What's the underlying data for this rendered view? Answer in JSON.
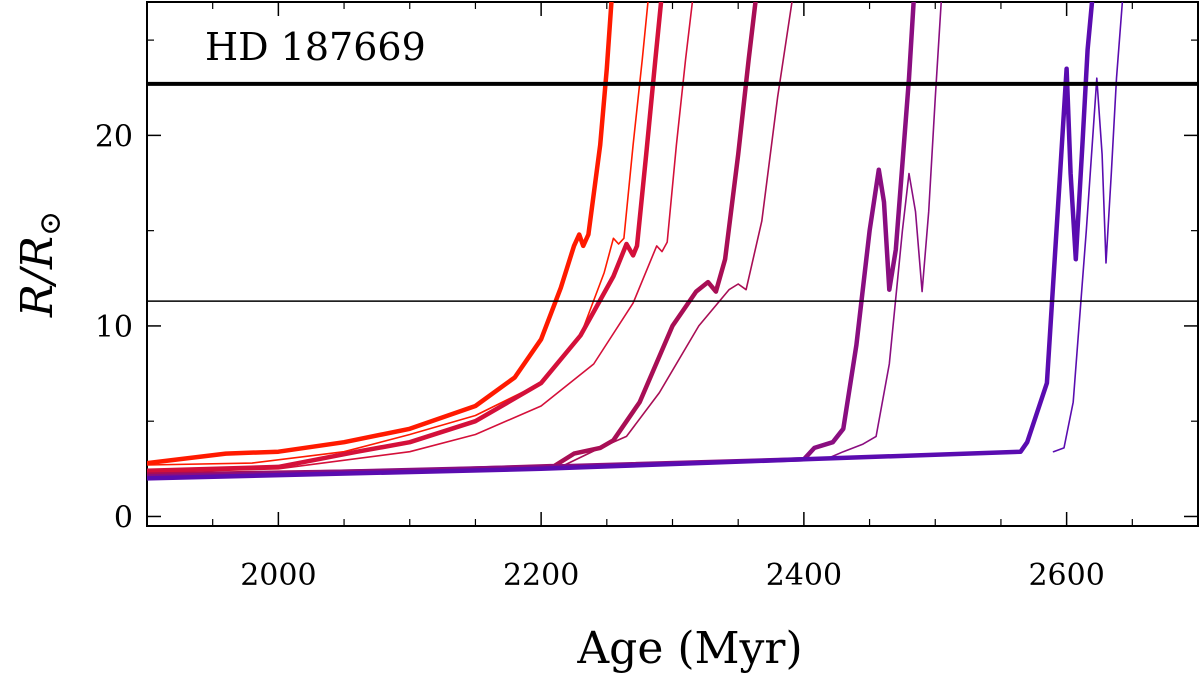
{
  "chart_data": {
    "type": "line",
    "title": "",
    "xlabel": "Age (Myr)",
    "ylabel_main": "R/R",
    "ylabel_sub": "⊙",
    "xlim": [
      1900,
      2700
    ],
    "ylim": [
      -0.5,
      27
    ],
    "x_ticks": [
      2000,
      2200,
      2400,
      2600
    ],
    "x_tick_labels": [
      "2000",
      "2200",
      "2400",
      "2600"
    ],
    "x_minor_ticks": [
      1950,
      2050,
      2100,
      2150,
      2250,
      2300,
      2350,
      2450,
      2500,
      2550,
      2650
    ],
    "y_ticks": [
      0,
      10,
      20
    ],
    "y_tick_labels": [
      "0",
      "10",
      "20"
    ],
    "y_minor_ticks": [
      5,
      15,
      25
    ],
    "annotation": "HD 187669",
    "hlines": [
      {
        "name": "upper-reference-line",
        "y": 22.7,
        "color": "#000000",
        "weight": "thick"
      },
      {
        "name": "lower-reference-line",
        "y": 11.3,
        "color": "#000000",
        "weight": "thin"
      }
    ],
    "series": [
      {
        "name": "track-1-thick",
        "color": "#ff1a00",
        "weight": "thick",
        "x": [
          1900,
          1960,
          2000,
          2050,
          2100,
          2150,
          2180,
          2200,
          2215,
          2225,
          2229,
          2232,
          2236,
          2245,
          2250,
          2254
        ],
        "y": [
          2.8,
          3.3,
          3.4,
          3.9,
          4.6,
          5.8,
          7.3,
          9.3,
          12.0,
          14.2,
          14.8,
          14.2,
          14.8,
          19.5,
          23.5,
          27.5
        ]
      },
      {
        "name": "track-1-thin",
        "color": "#ff1a00",
        "weight": "thin",
        "x": [
          1900,
          1980,
          2050,
          2100,
          2150,
          2200,
          2230,
          2248,
          2255,
          2259,
          2263,
          2270,
          2277,
          2282
        ],
        "y": [
          2.7,
          2.8,
          3.4,
          4.3,
          5.3,
          7.0,
          9.5,
          12.8,
          14.6,
          14.3,
          14.6,
          19.5,
          24.0,
          27.5
        ]
      },
      {
        "name": "track-2-thick",
        "color": "#d4103a",
        "weight": "thick",
        "x": [
          1900,
          2000,
          2060,
          2100,
          2150,
          2200,
          2230,
          2255,
          2265,
          2270,
          2273,
          2280,
          2287,
          2292
        ],
        "y": [
          2.4,
          2.6,
          3.4,
          3.9,
          5.0,
          7.0,
          9.5,
          12.6,
          14.3,
          13.7,
          14.2,
          19.0,
          24.0,
          27.5
        ]
      },
      {
        "name": "track-2-thin",
        "color": "#d4103a",
        "weight": "thin",
        "x": [
          1900,
          2000,
          2100,
          2150,
          2200,
          2240,
          2270,
          2288,
          2292,
          2296,
          2303,
          2310,
          2316
        ],
        "y": [
          2.3,
          2.5,
          3.4,
          4.3,
          5.8,
          8.0,
          11.2,
          14.2,
          13.9,
          14.4,
          19.5,
          24.0,
          27.5
        ]
      },
      {
        "name": "track-3-thick",
        "color": "#a80e55",
        "weight": "thick",
        "x": [
          1900,
          2100,
          2210,
          2225,
          2245,
          2255,
          2275,
          2300,
          2318,
          2327,
          2333,
          2340,
          2350,
          2358,
          2364
        ],
        "y": [
          2.2,
          2.4,
          2.65,
          3.3,
          3.6,
          4.0,
          6.0,
          10.0,
          11.8,
          12.3,
          11.8,
          13.5,
          19.0,
          24.0,
          27.5
        ]
      },
      {
        "name": "track-3-thin",
        "color": "#a80e55",
        "weight": "thin",
        "x": [
          2215,
          2245,
          2265,
          2290,
          2320,
          2343,
          2350,
          2356,
          2368,
          2380,
          2392
        ],
        "y": [
          2.6,
          3.6,
          4.2,
          6.5,
          10.0,
          11.9,
          12.2,
          11.9,
          15.5,
          22.0,
          27.5
        ]
      },
      {
        "name": "track-4-thick",
        "color": "#8a0e80",
        "weight": "thick",
        "x": [
          1900,
          2200,
          2400,
          2408,
          2422,
          2430,
          2440,
          2450,
          2457,
          2461,
          2465,
          2470,
          2475,
          2480,
          2484
        ],
        "y": [
          2.1,
          2.6,
          3.0,
          3.6,
          3.9,
          4.6,
          9.0,
          15.0,
          18.2,
          16.5,
          11.9,
          14.0,
          18.5,
          23.0,
          27.5
        ]
      },
      {
        "name": "track-4-thin",
        "color": "#8a0e80",
        "weight": "thin",
        "x": [
          2420,
          2430,
          2445,
          2455,
          2465,
          2475,
          2480,
          2485,
          2490,
          2495,
          2500,
          2505
        ],
        "y": [
          3.1,
          3.4,
          3.8,
          4.2,
          8.0,
          15.0,
          18.0,
          16.0,
          11.8,
          16.0,
          22.0,
          27.5
        ]
      },
      {
        "name": "track-5-thick",
        "color": "#5a0cb0",
        "weight": "thick",
        "x": [
          1900,
          2200,
          2400,
          2565,
          2570,
          2585,
          2595,
          2600,
          2603,
          2607,
          2612,
          2616,
          2620
        ],
        "y": [
          2.0,
          2.5,
          3.0,
          3.4,
          3.9,
          7.0,
          18.0,
          23.5,
          18.0,
          13.5,
          19.5,
          24.5,
          27.5
        ]
      },
      {
        "name": "track-5-thin",
        "color": "#5a0cb0",
        "weight": "thin",
        "x": [
          2590,
          2598,
          2605,
          2615,
          2623,
          2627,
          2630,
          2634,
          2638,
          2643
        ],
        "y": [
          3.4,
          3.6,
          6.0,
          15.0,
          23.0,
          19.0,
          13.3,
          18.0,
          23.0,
          27.5
        ]
      }
    ]
  }
}
